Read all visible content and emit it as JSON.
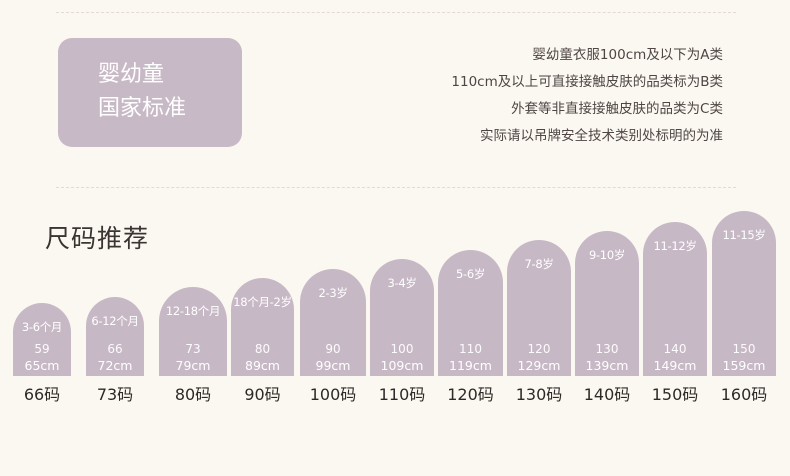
{
  "badge": {
    "line1": "婴幼童",
    "line2": "国家标准"
  },
  "rules": [
    "婴幼童衣服100cm及以下为A类",
    "110cm及以上可直接接触皮肤的品类标为B类",
    "外套等非直接接触皮肤的品类为C类",
    "实际请以吊牌安全技术类别处标明的为准"
  ],
  "section_title": "尺码推荐",
  "sizes": [
    {
      "age": "3-6个月",
      "height_a": "59",
      "height_b": "65cm",
      "size": "66码"
    },
    {
      "age": "6-12个月",
      "height_a": "66",
      "height_b": "72cm",
      "size": "73码"
    },
    {
      "age": "12-18个月",
      "height_a": "73",
      "height_b": "79cm",
      "size": "80码"
    },
    {
      "age": "18个月-2岁",
      "height_a": "80",
      "height_b": "89cm",
      "size": "90码"
    },
    {
      "age": "2-3岁",
      "height_a": "90",
      "height_b": "99cm",
      "size": "100码"
    },
    {
      "age": "3-4岁",
      "height_a": "100",
      "height_b": "109cm",
      "size": "110码"
    },
    {
      "age": "5-6岁",
      "height_a": "110",
      "height_b": "119cm",
      "size": "120码"
    },
    {
      "age": "7-8岁",
      "height_a": "120",
      "height_b": "129cm",
      "size": "130码"
    },
    {
      "age": "9-10岁",
      "height_a": "130",
      "height_b": "139cm",
      "size": "140码"
    },
    {
      "age": "11-12岁",
      "height_a": "140",
      "height_b": "149cm",
      "size": "150码"
    },
    {
      "age": "11-15岁",
      "height_a": "150",
      "height_b": "159cm",
      "size": "160码"
    }
  ]
}
